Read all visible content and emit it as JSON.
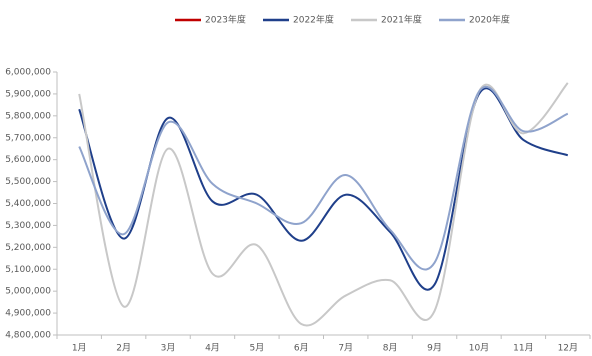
{
  "chart_data": {
    "type": "line",
    "categories": [
      "1月",
      "2月",
      "3月",
      "4月",
      "5月",
      "6月",
      "7月",
      "8月",
      "9月",
      "10月",
      "11月",
      "12月"
    ],
    "series": [
      {
        "name": "2023年度",
        "color": "#c00000",
        "values": [
          null,
          null,
          null,
          null,
          null,
          null,
          null,
          null,
          null,
          null,
          null,
          null
        ]
      },
      {
        "name": "2022年度",
        "color": "#1f3f8a",
        "values": [
          5830000,
          5240000,
          5790000,
          5410000,
          5440000,
          5230000,
          5440000,
          5270000,
          5030000,
          5900000,
          5690000,
          5620000
        ]
      },
      {
        "name": "2021年度",
        "color": "#c8c8c8",
        "values": [
          5900000,
          4930000,
          5650000,
          5080000,
          5210000,
          4850000,
          4980000,
          5050000,
          4910000,
          5910000,
          5720000,
          5950000
        ]
      },
      {
        "name": "2020年度",
        "color": "#8fa3cc",
        "values": [
          5660000,
          5260000,
          5770000,
          5490000,
          5400000,
          5310000,
          5530000,
          5280000,
          5130000,
          5910000,
          5730000,
          5810000
        ]
      }
    ],
    "ylim": [
      4800000,
      6000000
    ],
    "yticks": [
      {
        "value": 4800000,
        "label": "4,800,000"
      },
      {
        "value": 4900000,
        "label": "4,900,000"
      },
      {
        "value": 5000000,
        "label": "5,000,000"
      },
      {
        "value": 5100000,
        "label": "5,100,000"
      },
      {
        "value": 5200000,
        "label": "5,200,000"
      },
      {
        "value": 5300000,
        "label": "5,300,000"
      },
      {
        "value": 5400000,
        "label": "5,400,000"
      },
      {
        "value": 5500000,
        "label": "5,500,000"
      },
      {
        "value": 5600000,
        "label": "5,600,000"
      },
      {
        "value": 5700000,
        "label": "5,700,000"
      },
      {
        "value": 5800000,
        "label": "5,800,000"
      },
      {
        "value": 5900000,
        "label": "5,900,000"
      },
      {
        "value": 6000000,
        "label": "6,000,000"
      }
    ],
    "legend": "top",
    "smooth": true
  }
}
